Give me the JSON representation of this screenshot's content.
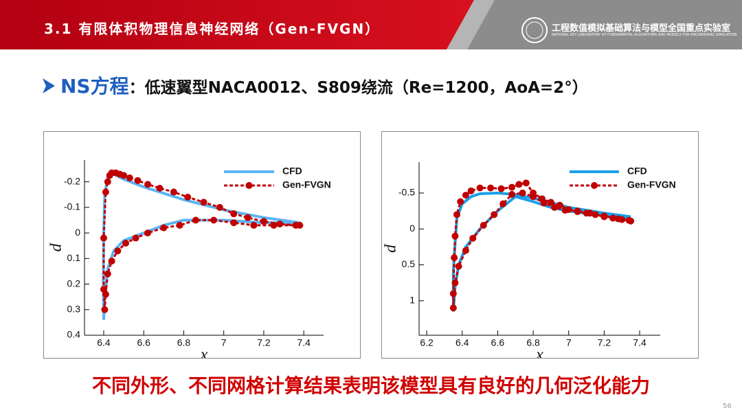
{
  "header": {
    "title": "3.1 有限体积物理信息神经网络（Gen-FVGN）",
    "lab_name": "工程数值模拟基础算法与模型全国重点实验室",
    "lab_name_en": "NATIONAL KEY LABORATORY OF FUNDAMENTAL ALGORITHMS AND MODELS FOR ENGINEERING SIMULATION"
  },
  "heading": {
    "keyword": "NS方程",
    "text": "：低速翼型NACA0012、S809绕流（Re=1200，AoA=2°）"
  },
  "conclusion": "不同外形、不同网格计算结果表明该模型具有良好的几何泛化能力",
  "page_number": "56",
  "chart_data": [
    {
      "type": "line",
      "xlabel": "x",
      "ylabel": "p",
      "xlim": [
        6.304,
        7.499
      ],
      "ylim": [
        0.4,
        -0.285
      ],
      "xticks": [
        6.4,
        6.6,
        6.8,
        7,
        7.2,
        7.4
      ],
      "yticks": [
        -0.2,
        -0.1,
        0,
        0.1,
        0.2,
        0.3,
        0.4
      ],
      "legend": "upper right",
      "series": [
        {
          "name": "CFD",
          "color": "#5ab4f5",
          "dashed": false,
          "x": [
            7.38,
            7.2,
            7.0,
            6.8,
            6.6,
            6.5,
            6.45,
            6.42,
            6.405,
            6.4,
            6.398,
            6.4,
            6.405,
            6.42,
            6.45,
            6.5,
            6.6,
            6.7,
            6.8,
            7.0,
            7.2,
            7.38
          ],
          "values": [
            -0.04,
            -0.06,
            -0.09,
            -0.13,
            -0.18,
            -0.21,
            -0.23,
            -0.22,
            -0.15,
            0.0,
            0.2,
            0.34,
            0.25,
            0.14,
            0.07,
            0.03,
            0.0,
            -0.03,
            -0.05,
            -0.05,
            -0.04,
            -0.04
          ]
        },
        {
          "name": "Gen-FVGN",
          "color": "#c00000",
          "dashed": true,
          "marker": "circle",
          "x": [
            7.36,
            7.28,
            7.2,
            7.12,
            7.05,
            6.98,
            6.9,
            6.82,
            6.75,
            6.68,
            6.62,
            6.57,
            6.53,
            6.5,
            6.48,
            6.46,
            6.44,
            6.43,
            6.42,
            6.41,
            6.4,
            6.4,
            6.405,
            6.41,
            6.42,
            6.44,
            6.47,
            6.51,
            6.56,
            6.62,
            6.7,
            6.78,
            6.86,
            6.95,
            7.05,
            7.15,
            7.25,
            7.38
          ],
          "values": [
            -0.03,
            -0.035,
            -0.045,
            -0.06,
            -0.075,
            -0.1,
            -0.12,
            -0.14,
            -0.16,
            -0.175,
            -0.19,
            -0.205,
            -0.215,
            -0.225,
            -0.23,
            -0.235,
            -0.235,
            -0.225,
            -0.2,
            -0.16,
            0.02,
            0.22,
            0.3,
            0.24,
            0.16,
            0.11,
            0.07,
            0.04,
            0.02,
            0.0,
            -0.02,
            -0.03,
            -0.05,
            -0.05,
            -0.04,
            -0.03,
            -0.03,
            -0.03
          ]
        }
      ]
    },
    {
      "type": "line",
      "xlabel": "x",
      "ylabel": "p",
      "xlim": [
        6.157,
        7.516
      ],
      "ylim": [
        1.48,
        -0.93
      ],
      "xticks": [
        6.2,
        6.4,
        6.6,
        6.8,
        7,
        7.2,
        7.4
      ],
      "yticks": [
        -0.5,
        0,
        0.5,
        1
      ],
      "legend": "upper right",
      "series": [
        {
          "name": "CFD",
          "color": "#1aa0e8",
          "dashed": false,
          "x": [
            7.35,
            7.2,
            7.0,
            6.85,
            6.7,
            6.6,
            6.5,
            6.45,
            6.4,
            6.37,
            6.36,
            6.35,
            6.35,
            6.36,
            6.38,
            6.42,
            6.5,
            6.6,
            6.7,
            6.8,
            6.9,
            7.0,
            7.15,
            7.35
          ],
          "values": [
            -0.17,
            -0.22,
            -0.3,
            -0.4,
            -0.48,
            -0.5,
            -0.49,
            -0.45,
            -0.35,
            -0.15,
            0.2,
            0.6,
            1.15,
            0.8,
            0.5,
            0.25,
            0.0,
            -0.25,
            -0.45,
            -0.38,
            -0.3,
            -0.25,
            -0.2,
            -0.15
          ]
        },
        {
          "name": "Gen-FVGN",
          "color": "#c00000",
          "dashed": true,
          "marker": "circle",
          "x": [
            7.34,
            7.3,
            7.25,
            7.2,
            7.15,
            7.1,
            7.05,
            7.0,
            6.95,
            6.9,
            6.85,
            6.8,
            6.76,
            6.72,
            6.68,
            6.62,
            6.56,
            6.5,
            6.45,
            6.42,
            6.39,
            6.37,
            6.36,
            6.355,
            6.35,
            6.35,
            6.36,
            6.38,
            6.42,
            6.46,
            6.52,
            6.58,
            6.63,
            6.68,
            6.74,
            6.8,
            6.86,
            6.92,
            6.98,
            7.05,
            7.12,
            7.2,
            7.28,
            7.35
          ],
          "values": [
            -0.12,
            -0.13,
            -0.15,
            -0.17,
            -0.2,
            -0.22,
            -0.24,
            -0.27,
            -0.33,
            -0.37,
            -0.42,
            -0.5,
            -0.64,
            -0.62,
            -0.58,
            -0.56,
            -0.57,
            -0.57,
            -0.53,
            -0.47,
            -0.38,
            -0.2,
            0.1,
            0.4,
            0.9,
            1.1,
            0.75,
            0.52,
            0.3,
            0.13,
            -0.05,
            -0.2,
            -0.35,
            -0.48,
            -0.5,
            -0.45,
            -0.36,
            -0.3,
            -0.26,
            -0.25,
            -0.22,
            -0.18,
            -0.14,
            -0.11
          ]
        }
      ]
    }
  ]
}
